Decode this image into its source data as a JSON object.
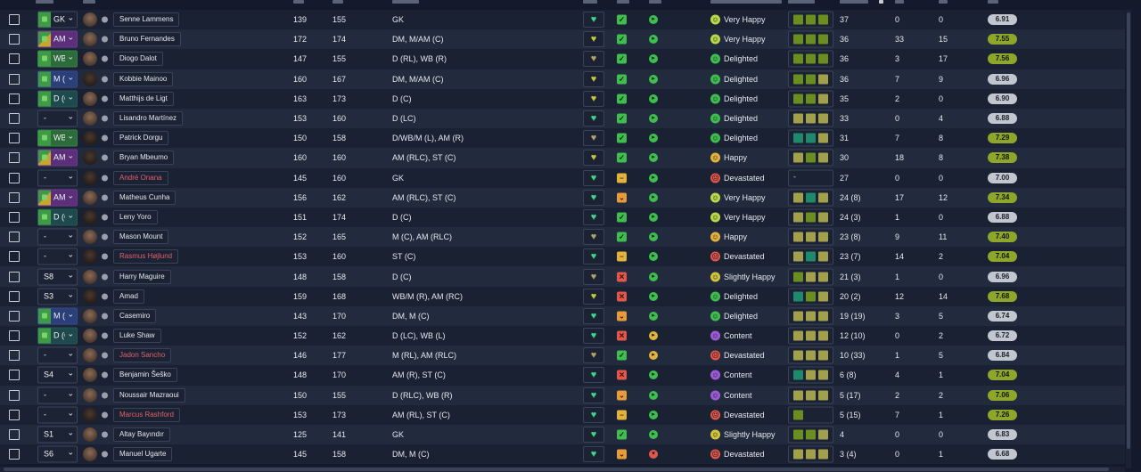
{
  "players": [
    {
      "sel": "GK",
      "selType": "p-gk",
      "selImg": true,
      "dm": false,
      "name": "Senne Lammens",
      "nameColor": "",
      "n1": "139",
      "n2": "155",
      "position": "GK",
      "heart": "g",
      "status": "ok",
      "dot": "g",
      "moodFace": "vh",
      "mood": "Very Happy",
      "form": [
        "sqB",
        "sqB",
        "sqB"
      ],
      "apps": "37",
      "goals": "0",
      "assists": "0",
      "rating": "6.91",
      "ratingClass": "grey",
      "dark": false
    },
    {
      "sel": "AM",
      "selType": "p-am",
      "selImg": true,
      "dm": true,
      "name": "Bruno Fernandes",
      "nameColor": "",
      "n1": "172",
      "n2": "174",
      "position": "DM, M/AM (C)",
      "heart": "y",
      "status": "ok",
      "dot": "g",
      "moodFace": "vh",
      "mood": "Very Happy",
      "form": [
        "sqB",
        "sqB",
        "sqB"
      ],
      "apps": "36",
      "goals": "33",
      "assists": "15",
      "rating": "7.55",
      "ratingClass": "green",
      "dark": false
    },
    {
      "sel": "WB",
      "selType": "p-wb",
      "selImg": true,
      "dm": false,
      "name": "Diogo Dalot",
      "nameColor": "",
      "n1": "147",
      "n2": "155",
      "position": "D (RL), WB (R)",
      "heart": "o",
      "status": "ok",
      "dot": "g",
      "moodFace": "dl",
      "mood": "Delighted",
      "form": [
        "sqB",
        "sqB",
        "sqB"
      ],
      "apps": "36",
      "goals": "3",
      "assists": "17",
      "rating": "7.56",
      "ratingClass": "green",
      "dark": false
    },
    {
      "sel": "M (C)",
      "selType": "p-m",
      "selImg": true,
      "dm": false,
      "name": "Kobbie Mainoo",
      "nameColor": "",
      "n1": "160",
      "n2": "167",
      "position": "DM, M/AM (C)",
      "heart": "y",
      "status": "ok",
      "dot": "g",
      "moodFace": "dl",
      "mood": "Delighted",
      "form": [
        "sqB",
        "sqB",
        "sqA"
      ],
      "apps": "36",
      "goals": "7",
      "assists": "9",
      "rating": "6.96",
      "ratingClass": "grey",
      "dark": true
    },
    {
      "sel": "D (C)",
      "selType": "p-d",
      "selImg": true,
      "dm": false,
      "name": "Matthijs de Ligt",
      "nameColor": "",
      "n1": "163",
      "n2": "173",
      "position": "D (C)",
      "heart": "y",
      "status": "ok",
      "dot": "g",
      "moodFace": "dl",
      "mood": "Delighted",
      "form": [
        "sqB",
        "sqB",
        "sqA"
      ],
      "apps": "35",
      "goals": "2",
      "assists": "0",
      "rating": "6.90",
      "ratingClass": "grey",
      "dark": false
    },
    {
      "sel": "-",
      "selType": "p-gk",
      "selImg": false,
      "dm": false,
      "name": "Lisandro Martínez",
      "nameColor": "",
      "n1": "153",
      "n2": "160",
      "position": "D (LC)",
      "heart": "g",
      "status": "ok",
      "dot": "g",
      "moodFace": "dl",
      "mood": "Delighted",
      "form": [
        "sqA",
        "sqA",
        "sqA"
      ],
      "apps": "33",
      "goals": "0",
      "assists": "4",
      "rating": "6.88",
      "ratingClass": "grey",
      "dark": false
    },
    {
      "sel": "WB",
      "selType": "p-wb",
      "selImg": true,
      "dm": false,
      "name": "Patrick Dorgu",
      "nameColor": "",
      "n1": "150",
      "n2": "158",
      "position": "D/WB/M (L), AM (R)",
      "heart": "o",
      "status": "ok",
      "dot": "g",
      "moodFace": "dl",
      "mood": "Delighted",
      "form": [
        "sqC",
        "sqC",
        "sqA"
      ],
      "apps": "31",
      "goals": "7",
      "assists": "8",
      "rating": "7.29",
      "ratingClass": "green",
      "dark": true
    },
    {
      "sel": "AM",
      "selType": "p-am",
      "selImg": true,
      "dm": true,
      "name": "Bryan Mbeumo",
      "nameColor": "",
      "n1": "160",
      "n2": "160",
      "position": "AM (RLC), ST (C)",
      "heart": "y",
      "status": "ok",
      "dot": "g",
      "moodFace": "hp",
      "mood": "Happy",
      "form": [
        "sqA",
        "sqB",
        "sqA"
      ],
      "apps": "30",
      "goals": "18",
      "assists": "8",
      "rating": "7.38",
      "ratingClass": "green",
      "dark": true
    },
    {
      "sel": "-",
      "selType": "p-gk",
      "selImg": false,
      "dm": false,
      "name": "André Onana",
      "nameColor": "red",
      "n1": "145",
      "n2": "160",
      "position": "GK",
      "heart": "g",
      "status": "min",
      "dot": "g",
      "moodFace": "dv",
      "mood": "Devastated",
      "form": [],
      "apps": "27",
      "goals": "0",
      "assists": "0",
      "rating": "7.00",
      "ratingClass": "grey",
      "dark": true
    },
    {
      "sel": "AM",
      "selType": "p-am",
      "selImg": true,
      "dm": true,
      "name": "Matheus Cunha",
      "nameColor": "",
      "n1": "156",
      "n2": "162",
      "position": "AM (RLC), ST (C)",
      "heart": "g",
      "status": "dn",
      "dot": "g",
      "moodFace": "vh",
      "mood": "Very Happy",
      "form": [
        "sqA",
        "sqC",
        "sqA"
      ],
      "apps": "24 (8)",
      "goals": "17",
      "assists": "12",
      "rating": "7.34",
      "ratingClass": "green",
      "dark": false
    },
    {
      "sel": "D (C)",
      "selType": "p-d",
      "selImg": true,
      "dm": false,
      "name": "Leny Yoro",
      "nameColor": "",
      "n1": "151",
      "n2": "174",
      "position": "D (C)",
      "heart": "g",
      "status": "ok",
      "dot": "g",
      "moodFace": "vh",
      "mood": "Very Happy",
      "form": [
        "sqA",
        "sqB",
        "sqA"
      ],
      "apps": "24 (3)",
      "goals": "1",
      "assists": "0",
      "rating": "6.88",
      "ratingClass": "grey",
      "dark": true
    },
    {
      "sel": "-",
      "selType": "p-gk",
      "selImg": false,
      "dm": false,
      "name": "Mason Mount",
      "nameColor": "",
      "n1": "152",
      "n2": "165",
      "position": "M (C), AM (RLC)",
      "heart": "o",
      "status": "ok",
      "dot": "g",
      "moodFace": "hp",
      "mood": "Happy",
      "form": [
        "sqA",
        "sqA",
        "sqA"
      ],
      "apps": "23 (8)",
      "goals": "9",
      "assists": "11",
      "rating": "7.40",
      "ratingClass": "green",
      "dark": false
    },
    {
      "sel": "-",
      "selType": "p-gk",
      "selImg": false,
      "dm": false,
      "name": "Rasmus Højlund",
      "nameColor": "red",
      "n1": "153",
      "n2": "160",
      "position": "ST (C)",
      "heart": "g",
      "status": "min",
      "dot": "g",
      "moodFace": "dv",
      "mood": "Devastated",
      "form": [
        "sqA",
        "sqC",
        "sqA"
      ],
      "apps": "23 (7)",
      "goals": "14",
      "assists": "2",
      "rating": "7.04",
      "ratingClass": "green",
      "dark": true
    },
    {
      "sel": "S8",
      "selType": "p-gk",
      "selImg": false,
      "dm": false,
      "name": "Harry Maguire",
      "nameColor": "",
      "n1": "148",
      "n2": "158",
      "position": "D (C)",
      "heart": "o",
      "status": "x",
      "dot": "g",
      "moodFace": "sh",
      "mood": "Slightly Happy",
      "form": [
        "sqB",
        "sqA",
        "sqA"
      ],
      "apps": "21 (3)",
      "goals": "1",
      "assists": "0",
      "rating": "6.96",
      "ratingClass": "grey",
      "dark": false
    },
    {
      "sel": "S3",
      "selType": "p-gk",
      "selImg": false,
      "dm": false,
      "name": "Amad",
      "nameColor": "",
      "n1": "159",
      "n2": "168",
      "position": "WB/M (R), AM (RC)",
      "heart": "y",
      "status": "x",
      "dot": "g",
      "moodFace": "dl",
      "mood": "Delighted",
      "form": [
        "sqC",
        "sqB",
        "sqA"
      ],
      "apps": "20 (2)",
      "goals": "12",
      "assists": "14",
      "rating": "7.68",
      "ratingClass": "green",
      "dark": true
    },
    {
      "sel": "M (C)",
      "selType": "p-m",
      "selImg": true,
      "dm": false,
      "name": "Casemiro",
      "nameColor": "",
      "n1": "143",
      "n2": "170",
      "position": "DM, M (C)",
      "heart": "g",
      "status": "dn",
      "dot": "g",
      "moodFace": "dl",
      "mood": "Delighted",
      "form": [
        "sqA",
        "sqA",
        "sqA"
      ],
      "apps": "19 (19)",
      "goals": "3",
      "assists": "5",
      "rating": "6.74",
      "ratingClass": "grey",
      "dark": false
    },
    {
      "sel": "D (C)",
      "selType": "p-d",
      "selImg": true,
      "dm": false,
      "name": "Luke Shaw",
      "nameColor": "",
      "n1": "152",
      "n2": "162",
      "position": "D (LC), WB (L)",
      "heart": "g",
      "status": "x",
      "dot": "y",
      "moodFace": "ct",
      "mood": "Content",
      "form": [
        "sqA",
        "sqA",
        "sqA"
      ],
      "apps": "12 (10)",
      "goals": "0",
      "assists": "2",
      "rating": "6.72",
      "ratingClass": "grey",
      "dark": false
    },
    {
      "sel": "-",
      "selType": "p-gk",
      "selImg": false,
      "dm": false,
      "name": "Jadon Sancho",
      "nameColor": "red",
      "n1": "146",
      "n2": "177",
      "position": "M (RL), AM (RLC)",
      "heart": "o",
      "status": "ok",
      "dot": "y",
      "moodFace": "dv",
      "mood": "Devastated",
      "form": [
        "sqA",
        "sqA",
        "sqA"
      ],
      "apps": "10 (33)",
      "goals": "1",
      "assists": "5",
      "rating": "6.84",
      "ratingClass": "grey",
      "dark": false
    },
    {
      "sel": "S4",
      "selType": "p-gk",
      "selImg": false,
      "dm": false,
      "name": "Benjamin Šeško",
      "nameColor": "",
      "n1": "148",
      "n2": "170",
      "position": "AM (R), ST (C)",
      "heart": "g",
      "status": "x",
      "dot": "g",
      "moodFace": "ct",
      "mood": "Content",
      "form": [
        "sqC",
        "sqA",
        "sqA"
      ],
      "apps": "6 (8)",
      "goals": "4",
      "assists": "1",
      "rating": "7.04",
      "ratingClass": "green",
      "dark": false
    },
    {
      "sel": "-",
      "selType": "p-gk",
      "selImg": false,
      "dm": false,
      "name": "Noussair Mazraoui",
      "nameColor": "",
      "n1": "150",
      "n2": "155",
      "position": "D (RLC), WB (R)",
      "heart": "g",
      "status": "dn",
      "dot": "g",
      "moodFace": "ct",
      "mood": "Content",
      "form": [
        "sqA",
        "sqA",
        "sqA"
      ],
      "apps": "5 (17)",
      "goals": "2",
      "assists": "2",
      "rating": "7.06",
      "ratingClass": "green",
      "dark": false
    },
    {
      "sel": "-",
      "selType": "p-gk",
      "selImg": false,
      "dm": false,
      "name": "Marcus Rashford",
      "nameColor": "red",
      "n1": "153",
      "n2": "173",
      "position": "AM (RL), ST (C)",
      "heart": "g",
      "status": "min",
      "dot": "g",
      "moodFace": "dv",
      "mood": "Devastated",
      "form": [
        "sqB"
      ],
      "apps": "5 (15)",
      "goals": "7",
      "assists": "1",
      "rating": "7.26",
      "ratingClass": "green",
      "dark": true
    },
    {
      "sel": "S1",
      "selType": "p-gk",
      "selImg": false,
      "dm": false,
      "name": "Altay Bayındır",
      "nameColor": "",
      "n1": "125",
      "n2": "141",
      "position": "GK",
      "heart": "g",
      "status": "ok",
      "dot": "g",
      "moodFace": "sh",
      "mood": "Slightly Happy",
      "form": [
        "sqB",
        "sqB",
        "sqA"
      ],
      "apps": "4",
      "goals": "0",
      "assists": "0",
      "rating": "6.83",
      "ratingClass": "grey",
      "dark": false
    },
    {
      "sel": "S6",
      "selType": "p-gk",
      "selImg": false,
      "dm": false,
      "name": "Manuel Ugarte",
      "nameColor": "",
      "n1": "145",
      "n2": "158",
      "position": "DM, M (C)",
      "heart": "g",
      "status": "dn",
      "dot": "r",
      "moodFace": "dv",
      "mood": "Devastated",
      "form": [
        "sqA",
        "sqA",
        "sqA"
      ],
      "apps": "3 (4)",
      "goals": "0",
      "assists": "1",
      "rating": "6.68",
      "ratingClass": "grey",
      "dark": false
    }
  ],
  "icons": {
    "dropdown": "chevron-down-icon",
    "heart": "heart-icon",
    "check": "check-icon",
    "cross": "cross-icon",
    "minus": "minus-icon",
    "down": "down-arrow-icon",
    "mood": "mood-face-icon"
  }
}
